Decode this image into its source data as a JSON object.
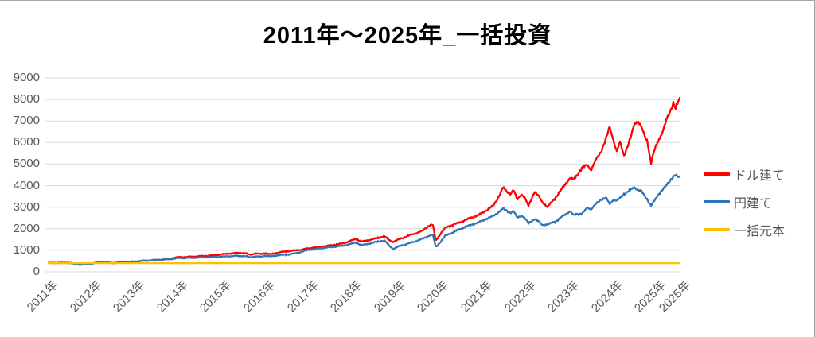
{
  "chart_data": {
    "type": "line",
    "title": "2011年～2025年_一括投資",
    "x_axis": {
      "labels": [
        "2011年",
        "2012年",
        "2013年",
        "2014年",
        "2015年",
        "2016年",
        "2017年",
        "2018年",
        "2019年",
        "2020年",
        "2021年",
        "2022年",
        "2023年",
        "2024年",
        "2025年",
        "2025年"
      ],
      "range_years": [
        2011.0,
        2025.56
      ]
    },
    "y_axis": {
      "min": 0,
      "max": 9000,
      "step": 1000,
      "tick_labels": [
        "0",
        "1000",
        "2000",
        "3000",
        "4000",
        "5000",
        "6000",
        "7000",
        "8000",
        "9000"
      ]
    },
    "grid": true,
    "legend_position": "right",
    "principal_value": 400,
    "series": [
      {
        "name": "ドル建て",
        "color": "#ff0000",
        "points": [
          [
            2011.0,
            400
          ],
          [
            2011.15,
            420
          ],
          [
            2011.3,
            412
          ],
          [
            2011.45,
            428
          ],
          [
            2011.58,
            390
          ],
          [
            2011.7,
            345
          ],
          [
            2011.78,
            338
          ],
          [
            2011.87,
            372
          ],
          [
            2011.95,
            358
          ],
          [
            2012.05,
            398
          ],
          [
            2012.2,
            442
          ],
          [
            2012.38,
            422
          ],
          [
            2012.55,
            416
          ],
          [
            2012.75,
            450
          ],
          [
            2012.9,
            462
          ],
          [
            2013.0,
            478
          ],
          [
            2013.2,
            512
          ],
          [
            2013.4,
            535
          ],
          [
            2013.6,
            565
          ],
          [
            2013.8,
            610
          ],
          [
            2014.0,
            680
          ],
          [
            2014.2,
            690
          ],
          [
            2014.4,
            715
          ],
          [
            2014.6,
            735
          ],
          [
            2014.8,
            765
          ],
          [
            2015.0,
            810
          ],
          [
            2015.2,
            855
          ],
          [
            2015.4,
            885
          ],
          [
            2015.55,
            862
          ],
          [
            2015.65,
            790
          ],
          [
            2015.78,
            855
          ],
          [
            2015.9,
            825
          ],
          [
            2016.0,
            870
          ],
          [
            2016.12,
            815
          ],
          [
            2016.3,
            890
          ],
          [
            2016.5,
            955
          ],
          [
            2016.7,
            995
          ],
          [
            2016.85,
            1030
          ],
          [
            2017.0,
            1090
          ],
          [
            2017.2,
            1150
          ],
          [
            2017.4,
            1200
          ],
          [
            2017.6,
            1255
          ],
          [
            2017.8,
            1320
          ],
          [
            2018.0,
            1460
          ],
          [
            2018.1,
            1530
          ],
          [
            2018.22,
            1400
          ],
          [
            2018.35,
            1455
          ],
          [
            2018.5,
            1520
          ],
          [
            2018.65,
            1600
          ],
          [
            2018.75,
            1650
          ],
          [
            2018.85,
            1480
          ],
          [
            2018.95,
            1395
          ],
          [
            2019.1,
            1520
          ],
          [
            2019.33,
            1700
          ],
          [
            2019.6,
            1880
          ],
          [
            2019.78,
            2150
          ],
          [
            2019.86,
            2190
          ],
          [
            2019.93,
            1450
          ],
          [
            2020.05,
            1800
          ],
          [
            2020.16,
            2060
          ],
          [
            2020.3,
            2160
          ],
          [
            2020.5,
            2310
          ],
          [
            2020.7,
            2480
          ],
          [
            2020.9,
            2620
          ],
          [
            2021.05,
            2800
          ],
          [
            2021.25,
            3060
          ],
          [
            2021.38,
            3500
          ],
          [
            2021.48,
            3920
          ],
          [
            2021.58,
            3700
          ],
          [
            2021.65,
            3610
          ],
          [
            2021.72,
            3800
          ],
          [
            2021.8,
            3360
          ],
          [
            2021.9,
            3600
          ],
          [
            2021.98,
            3420
          ],
          [
            2022.06,
            3060
          ],
          [
            2022.2,
            3710
          ],
          [
            2022.3,
            3500
          ],
          [
            2022.38,
            3240
          ],
          [
            2022.5,
            3000
          ],
          [
            2022.6,
            3250
          ],
          [
            2022.7,
            3480
          ],
          [
            2022.88,
            3990
          ],
          [
            2023.02,
            4360
          ],
          [
            2023.1,
            4280
          ],
          [
            2023.15,
            4410
          ],
          [
            2023.3,
            4840
          ],
          [
            2023.42,
            4960
          ],
          [
            2023.5,
            4720
          ],
          [
            2023.6,
            5150
          ],
          [
            2023.73,
            5580
          ],
          [
            2023.85,
            6200
          ],
          [
            2023.93,
            6720
          ],
          [
            2024.02,
            6100
          ],
          [
            2024.09,
            5580
          ],
          [
            2024.17,
            6010
          ],
          [
            2024.26,
            5400
          ],
          [
            2024.4,
            6130
          ],
          [
            2024.5,
            6870
          ],
          [
            2024.58,
            7000
          ],
          [
            2024.66,
            6710
          ],
          [
            2024.74,
            6280
          ],
          [
            2024.8,
            6060
          ],
          [
            2024.88,
            5040
          ],
          [
            2024.97,
            5700
          ],
          [
            2025.06,
            6140
          ],
          [
            2025.15,
            6500
          ],
          [
            2025.24,
            7060
          ],
          [
            2025.33,
            7490
          ],
          [
            2025.39,
            7860
          ],
          [
            2025.45,
            7570
          ],
          [
            2025.51,
            7910
          ],
          [
            2025.56,
            8090
          ]
        ]
      },
      {
        "name": "円建て",
        "color": "#2e75b6",
        "points": [
          [
            2011.0,
            400
          ],
          [
            2011.15,
            415
          ],
          [
            2011.3,
            405
          ],
          [
            2011.45,
            418
          ],
          [
            2011.58,
            382
          ],
          [
            2011.7,
            340
          ],
          [
            2011.78,
            330
          ],
          [
            2011.87,
            362
          ],
          [
            2011.95,
            350
          ],
          [
            2012.05,
            390
          ],
          [
            2012.2,
            432
          ],
          [
            2012.38,
            412
          ],
          [
            2012.55,
            405
          ],
          [
            2012.75,
            440
          ],
          [
            2012.9,
            455
          ],
          [
            2013.0,
            480
          ],
          [
            2013.2,
            515
          ],
          [
            2013.4,
            538
          ],
          [
            2013.6,
            558
          ],
          [
            2013.8,
            585
          ],
          [
            2014.0,
            640
          ],
          [
            2014.2,
            645
          ],
          [
            2014.4,
            660
          ],
          [
            2014.6,
            672
          ],
          [
            2014.8,
            688
          ],
          [
            2015.0,
            705
          ],
          [
            2015.2,
            728
          ],
          [
            2015.4,
            742
          ],
          [
            2015.55,
            728
          ],
          [
            2015.65,
            672
          ],
          [
            2015.78,
            718
          ],
          [
            2015.9,
            695
          ],
          [
            2016.0,
            760
          ],
          [
            2016.12,
            715
          ],
          [
            2016.3,
            772
          ],
          [
            2016.5,
            800
          ],
          [
            2016.7,
            860
          ],
          [
            2016.85,
            935
          ],
          [
            2017.0,
            1025
          ],
          [
            2017.2,
            1075
          ],
          [
            2017.4,
            1120
          ],
          [
            2017.6,
            1165
          ],
          [
            2017.8,
            1215
          ],
          [
            2018.0,
            1310
          ],
          [
            2018.1,
            1360
          ],
          [
            2018.22,
            1230
          ],
          [
            2018.35,
            1290
          ],
          [
            2018.5,
            1360
          ],
          [
            2018.65,
            1420
          ],
          [
            2018.75,
            1450
          ],
          [
            2018.85,
            1230
          ],
          [
            2018.95,
            1060
          ],
          [
            2019.1,
            1200
          ],
          [
            2019.33,
            1330
          ],
          [
            2019.6,
            1515
          ],
          [
            2019.78,
            1680
          ],
          [
            2019.86,
            1720
          ],
          [
            2019.93,
            1150
          ],
          [
            2020.05,
            1420
          ],
          [
            2020.16,
            1700
          ],
          [
            2020.3,
            1800
          ],
          [
            2020.5,
            2000
          ],
          [
            2020.7,
            2150
          ],
          [
            2020.9,
            2280
          ],
          [
            2021.05,
            2420
          ],
          [
            2021.25,
            2590
          ],
          [
            2021.38,
            2780
          ],
          [
            2021.48,
            2930
          ],
          [
            2021.58,
            2820
          ],
          [
            2021.65,
            2740
          ],
          [
            2021.72,
            2820
          ],
          [
            2021.8,
            2520
          ],
          [
            2021.9,
            2610
          ],
          [
            2021.98,
            2480
          ],
          [
            2022.06,
            2260
          ],
          [
            2022.2,
            2450
          ],
          [
            2022.3,
            2330
          ],
          [
            2022.38,
            2180
          ],
          [
            2022.5,
            2190
          ],
          [
            2022.6,
            2280
          ],
          [
            2022.7,
            2350
          ],
          [
            2022.88,
            2630
          ],
          [
            2023.02,
            2810
          ],
          [
            2023.1,
            2620
          ],
          [
            2023.15,
            2680
          ],
          [
            2023.3,
            2700
          ],
          [
            2023.42,
            2990
          ],
          [
            2023.5,
            2900
          ],
          [
            2023.6,
            3120
          ],
          [
            2023.73,
            3360
          ],
          [
            2023.85,
            3430
          ],
          [
            2023.93,
            3140
          ],
          [
            2024.02,
            3360
          ],
          [
            2024.09,
            3300
          ],
          [
            2024.17,
            3420
          ],
          [
            2024.26,
            3610
          ],
          [
            2024.4,
            3790
          ],
          [
            2024.5,
            3920
          ],
          [
            2024.58,
            3800
          ],
          [
            2024.66,
            3740
          ],
          [
            2024.74,
            3500
          ],
          [
            2024.8,
            3350
          ],
          [
            2024.88,
            3070
          ],
          [
            2024.97,
            3320
          ],
          [
            2025.06,
            3620
          ],
          [
            2025.15,
            3820
          ],
          [
            2025.24,
            4010
          ],
          [
            2025.33,
            4260
          ],
          [
            2025.39,
            4420
          ],
          [
            2025.45,
            4500
          ],
          [
            2025.51,
            4360
          ],
          [
            2025.56,
            4450
          ]
        ]
      },
      {
        "name": "一括元本",
        "color": "#ffc000",
        "points": [
          [
            2011.0,
            400
          ],
          [
            2025.56,
            400
          ]
        ]
      }
    ]
  },
  "styles": {
    "gridline_color": "#d9d9d9",
    "axis_text_color": "#595959",
    "title_color": "#000000",
    "frame_border_color": "#a6a6a6"
  }
}
